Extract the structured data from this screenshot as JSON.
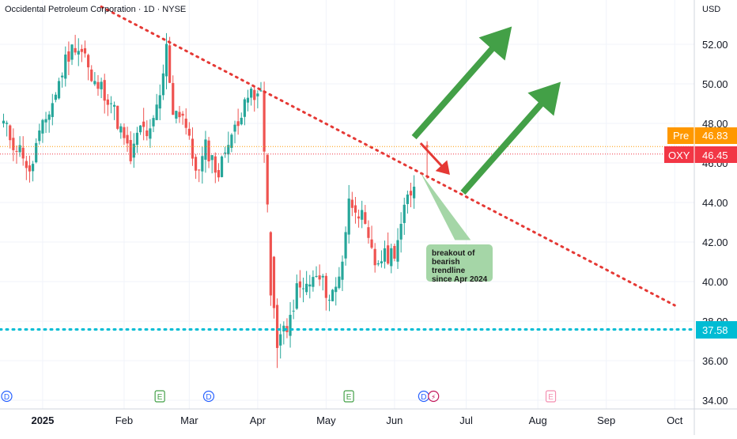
{
  "header": {
    "title": "Occidental Petroleum Corporation · 1D · NYSE",
    "currency": "USD"
  },
  "price_badges": {
    "pre_label": "Pre",
    "pre_value": "46.83",
    "ticker": "OXY",
    "last_value": "46.45",
    "support_value": "37.58",
    "hidden_tick": "46.00"
  },
  "annotation": {
    "note_lines": [
      "breakout of",
      "bearish trendline",
      "since Apr 2024"
    ]
  },
  "events": [
    {
      "label": "D",
      "x_index": 0,
      "kind": "dividend"
    },
    {
      "label": "E",
      "x_index": 47,
      "kind": "earnings"
    },
    {
      "label": "D",
      "x_index": 62,
      "kind": "dividend"
    },
    {
      "label": "E",
      "x_index": 105,
      "kind": "earnings"
    },
    {
      "label": "D",
      "x_index": 128,
      "kind": "dividend"
    },
    {
      "label": "⚡",
      "x_index": 131,
      "kind": "split"
    },
    {
      "label": "E",
      "x_index": 167,
      "kind": "earnings-future"
    }
  ],
  "colors": {
    "up": "#26a69a",
    "down": "#ef5350",
    "trendline": "#e53935",
    "support": "#00bcd4",
    "arrow_green": "#43a047",
    "arrow_red": "#e53935",
    "pre_badge": "#ff9800",
    "last_badge": "#f23645",
    "support_badge": "#00bcd4"
  },
  "chart_data": {
    "type": "candlestick",
    "title": "Occidental Petroleum Corporation · 1D · NYSE",
    "y_axis": {
      "label": "USD",
      "min": 34,
      "max": 52,
      "ticks": [
        "34.00",
        "36.00",
        "38.00",
        "40.00",
        "42.00",
        "44.00",
        "48.00",
        "50.00",
        "52.00"
      ]
    },
    "x_axis": {
      "ticks": [
        {
          "label": "2025",
          "index": 12,
          "bold": true
        },
        {
          "label": "Feb",
          "index": 37
        },
        {
          "label": "Mar",
          "index": 57
        },
        {
          "label": "Apr",
          "index": 78
        },
        {
          "label": "May",
          "index": 99
        },
        {
          "label": "Jun",
          "index": 120
        },
        {
          "label": "Jul",
          "index": 142
        },
        {
          "label": "Aug",
          "index": 164
        },
        {
          "label": "Sep",
          "index": 185
        },
        {
          "label": "Oct",
          "index": 206
        }
      ],
      "total_slots": 212
    },
    "anchor_points": [
      [
        0,
        48.0
      ],
      [
        3,
        47.0
      ],
      [
        6,
        46.5
      ],
      [
        8,
        45.3
      ],
      [
        10,
        46.9
      ],
      [
        13,
        48.2
      ],
      [
        16,
        49.5
      ],
      [
        19,
        51.2
      ],
      [
        22,
        52.0
      ],
      [
        25,
        51.5
      ],
      [
        27,
        50.0
      ],
      [
        30,
        49.8
      ],
      [
        33,
        49.1
      ],
      [
        36,
        47.6
      ],
      [
        39,
        46.2
      ],
      [
        42,
        47.8
      ],
      [
        45,
        47.4
      ],
      [
        48,
        49.3
      ],
      [
        50,
        51.8
      ],
      [
        52,
        48.7
      ],
      [
        55,
        48.5
      ],
      [
        58,
        46.3
      ],
      [
        60,
        45.5
      ],
      [
        62,
        46.8
      ],
      [
        64,
        46.2
      ],
      [
        66,
        45.4
      ],
      [
        69,
        47.3
      ],
      [
        72,
        47.8
      ],
      [
        74,
        49.6
      ],
      [
        77,
        49.2
      ],
      [
        79,
        49.5
      ],
      [
        80,
        46.6
      ],
      [
        81,
        44.0
      ],
      [
        82,
        41.1
      ],
      [
        83,
        38.7
      ],
      [
        84,
        36.2
      ],
      [
        85,
        37.7
      ],
      [
        87,
        37.2
      ],
      [
        88,
        38.2
      ],
      [
        90,
        39.6
      ],
      [
        92,
        39.6
      ],
      [
        94,
        39.9
      ],
      [
        96,
        40.2
      ],
      [
        98,
        39.9
      ],
      [
        100,
        39.2
      ],
      [
        102,
        39.7
      ],
      [
        104,
        41.2
      ],
      [
        106,
        44.0
      ],
      [
        108,
        43.9
      ],
      [
        110,
        43.2
      ],
      [
        112,
        41.9
      ],
      [
        114,
        40.9
      ],
      [
        116,
        41.2
      ],
      [
        118,
        41.3
      ],
      [
        120,
        41.6
      ],
      [
        122,
        42.8
      ],
      [
        124,
        44.2
      ],
      [
        126,
        44.8
      ]
    ],
    "series": [
      {
        "name": "OXY",
        "type": "candlestick",
        "last": 46.45,
        "premarket": 46.83
      }
    ],
    "lines": [
      {
        "kind": "trendline",
        "style": "dotted",
        "from": {
          "index": 30,
          "price": 53.9
        },
        "to": {
          "index": 206,
          "price": 38.8
        }
      },
      {
        "kind": "horizontal",
        "style": "dotted",
        "price": 37.58
      },
      {
        "kind": "horizontal",
        "style": "dotted-thin",
        "price": 46.83
      },
      {
        "kind": "horizontal",
        "style": "dotted-thin",
        "price": 46.45
      }
    ],
    "arrows": [
      {
        "color": "green",
        "from": {
          "index": 126,
          "price": 47.3
        },
        "to": {
          "index": 156,
          "price": 52.9
        }
      },
      {
        "color": "green",
        "from": {
          "index": 141,
          "price": 44.5
        },
        "to": {
          "index": 171,
          "price": 50.1
        }
      },
      {
        "color": "red",
        "from": {
          "index": 128,
          "price": 47.0
        },
        "to": {
          "index": 137,
          "price": 45.4
        }
      }
    ],
    "pointer": {
      "from": {
        "index": 128,
        "price": 45.5
      },
      "to": {
        "index": 140,
        "price": 42.1
      }
    }
  }
}
